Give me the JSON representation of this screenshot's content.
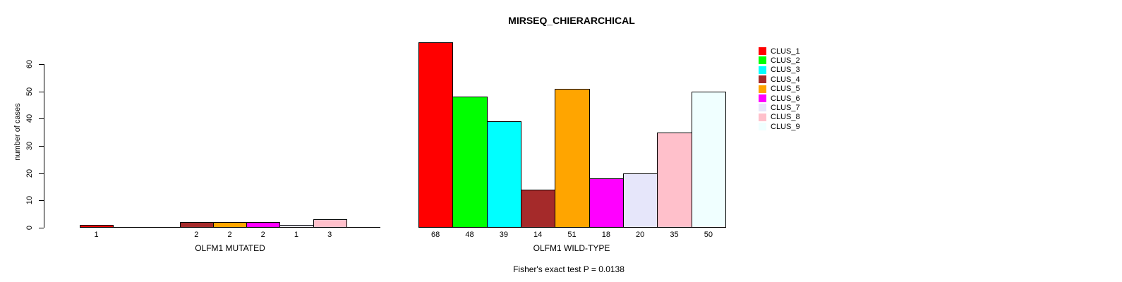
{
  "chart_data": {
    "type": "bar",
    "title": "MIRSEQ_CHIERARCHICAL",
    "ylabel": "number of cases",
    "ylim": [
      0,
      60
    ],
    "yticks": [
      0,
      10,
      20,
      30,
      40,
      50,
      60
    ],
    "grid": false,
    "legend_position": "right",
    "categories": [
      "CLUS_1",
      "CLUS_2",
      "CLUS_3",
      "CLUS_4",
      "CLUS_5",
      "CLUS_6",
      "CLUS_7",
      "CLUS_8",
      "CLUS_9"
    ],
    "colors": [
      "#ff0000",
      "#00ff00",
      "#00ffff",
      "#a52a2a",
      "#ffa500",
      "#ff00ff",
      "#e6e6fa",
      "#ffc0cb",
      "#f0ffff"
    ],
    "groups": [
      {
        "label": "OLFM1 MUTATED",
        "values": [
          1,
          0,
          0,
          2,
          2,
          2,
          1,
          3,
          0
        ]
      },
      {
        "label": "OLFM1 WILD-TYPE",
        "values": [
          68,
          48,
          39,
          14,
          51,
          18,
          20,
          35,
          50
        ]
      }
    ],
    "bar_value_labels_note": "each non-zero bar is labeled with its value below the axis",
    "annotation": "Fisher's exact test P = 0.0138"
  }
}
